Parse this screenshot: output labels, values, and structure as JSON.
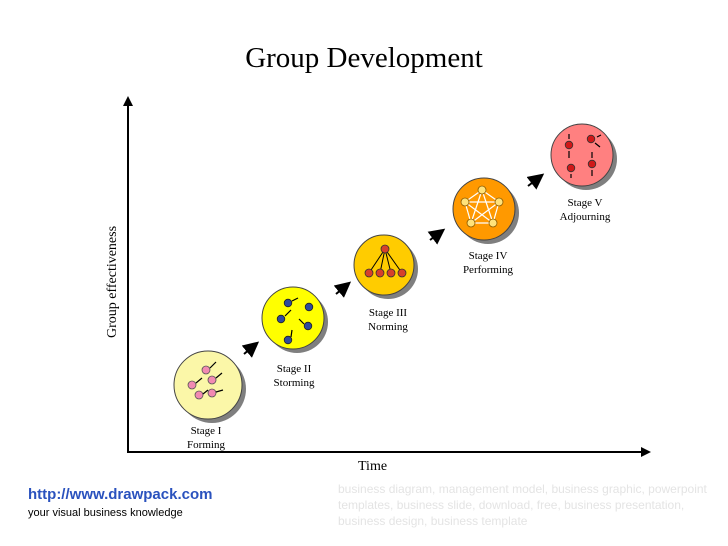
{
  "title": "Group Development",
  "axes": {
    "y_label": "Group effectiveness",
    "x_label": "Time"
  },
  "stages": [
    {
      "name": "Stage I",
      "phase": "Forming",
      "color": "#fbf7a8",
      "dot_color": "#f28ab2"
    },
    {
      "name": "Stage II",
      "phase": "Storming",
      "color": "#ffff00",
      "dot_color": "#2e4a9e"
    },
    {
      "name": "Stage III",
      "phase": "Norming",
      "color": "#ffcc00",
      "dot_color": "#d6402b"
    },
    {
      "name": "Stage IV",
      "phase": "Performing",
      "color": "#ff9900",
      "dot_color": "#ffe27a"
    },
    {
      "name": "Stage V",
      "phase": "Adjourning",
      "color": "#ff8080",
      "dot_color": "#d01818"
    }
  ],
  "footer": {
    "link": "http://www.drawpack.com",
    "tagline": "your visual business knowledge",
    "keywords": "business diagram, management model, business graphic, powerpoint templates, business slide, download, free, business presentation, business design, business template"
  }
}
